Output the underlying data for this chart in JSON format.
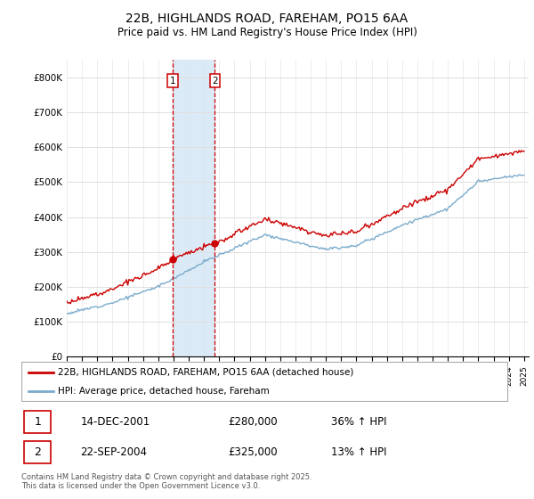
{
  "title": "22B, HIGHLANDS ROAD, FAREHAM, PO15 6AA",
  "subtitle": "Price paid vs. HM Land Registry's House Price Index (HPI)",
  "ylim": [
    0,
    850000
  ],
  "yticks": [
    0,
    100000,
    200000,
    300000,
    400000,
    500000,
    600000,
    700000,
    800000
  ],
  "ytick_labels": [
    "£0",
    "£100K",
    "£200K",
    "£300K",
    "£400K",
    "£500K",
    "£600K",
    "£700K",
    "£800K"
  ],
  "sale1_x": 2001.95,
  "sale1_price": 280000,
  "sale1_date": "14-DEC-2001",
  "sale1_hpi": "36% ↑ HPI",
  "sale2_x": 2004.72,
  "sale2_price": 325000,
  "sale2_date": "22-SEP-2004",
  "sale2_hpi": "13% ↑ HPI",
  "legend_line1": "22B, HIGHLANDS ROAD, FAREHAM, PO15 6AA (detached house)",
  "legend_line2": "HPI: Average price, detached house, Fareham",
  "footer": "Contains HM Land Registry data © Crown copyright and database right 2025.\nThis data is licensed under the Open Government Licence v3.0.",
  "price_line_color": "#cc0000",
  "hpi_line_color": "#7aabcc",
  "highlight_fill": "#dbeaf7",
  "highlight_border": "#cc0000",
  "grid_color": "#e0e0e0",
  "background_color": "#ffffff"
}
